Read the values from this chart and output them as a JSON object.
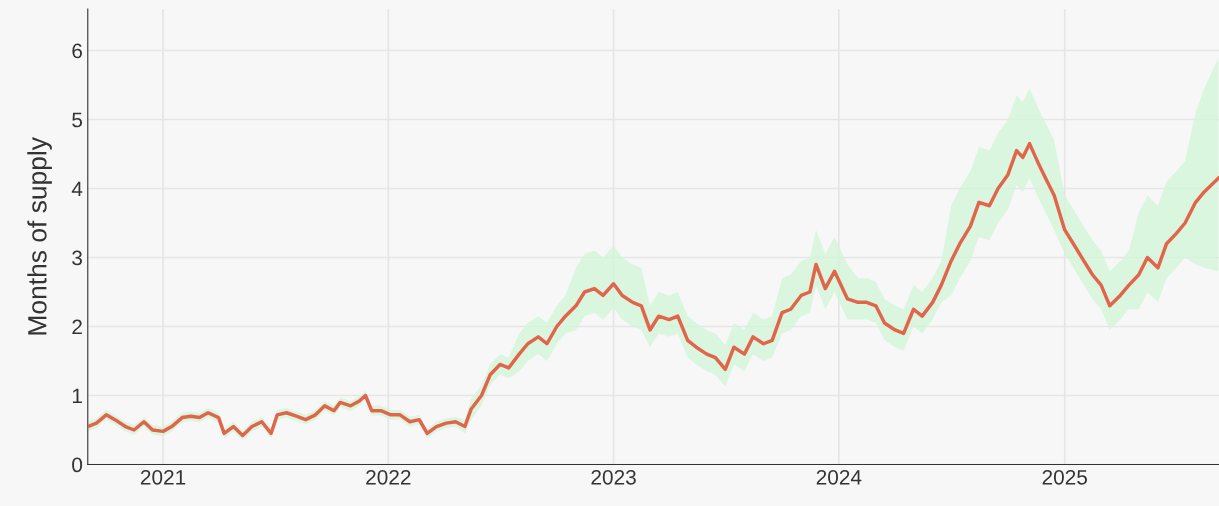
{
  "chart_data": {
    "type": "line",
    "ylabel": "Months of supply",
    "xlim": [
      "2020-09-01",
      "2025-09-08"
    ],
    "xticks": [
      {
        "value": "2021-01-01",
        "label": "2021"
      },
      {
        "value": "2022-01-01",
        "label": "2022"
      },
      {
        "value": "2023-01-01",
        "label": "2023"
      },
      {
        "value": "2024-01-01",
        "label": "2024"
      },
      {
        "value": "2025-01-01",
        "label": "2025"
      }
    ],
    "ylim": [
      0,
      6.6
    ],
    "yticks": [
      0,
      1,
      2,
      3,
      4,
      5,
      6
    ],
    "grid": true,
    "x": [
      "2020-09-01",
      "2020-09-15",
      "2020-10-01",
      "2020-10-15",
      "2020-11-01",
      "2020-11-15",
      "2020-12-01",
      "2020-12-15",
      "2021-01-01",
      "2021-01-15",
      "2021-02-01",
      "2021-02-15",
      "2021-03-01",
      "2021-03-15",
      "2021-04-01",
      "2021-04-10",
      "2021-04-25",
      "2021-05-10",
      "2021-05-25",
      "2021-06-10",
      "2021-06-25",
      "2021-07-05",
      "2021-07-20",
      "2021-08-05",
      "2021-08-20",
      "2021-09-05",
      "2021-09-20",
      "2021-10-05",
      "2021-10-15",
      "2021-11-01",
      "2021-11-15",
      "2021-11-25",
      "2021-12-05",
      "2021-12-20",
      "2022-01-05",
      "2022-01-20",
      "2022-02-05",
      "2022-02-20",
      "2022-03-05",
      "2022-03-20",
      "2022-04-05",
      "2022-04-20",
      "2022-05-05",
      "2022-05-15",
      "2022-06-01",
      "2022-06-15",
      "2022-07-01",
      "2022-07-15",
      "2022-08-01",
      "2022-08-15",
      "2022-09-01",
      "2022-09-15",
      "2022-10-01",
      "2022-10-15",
      "2022-11-01",
      "2022-11-15",
      "2022-12-01",
      "2022-12-15",
      "2023-01-01",
      "2023-01-15",
      "2023-02-01",
      "2023-02-15",
      "2023-03-01",
      "2023-03-15",
      "2023-04-01",
      "2023-04-15",
      "2023-05-01",
      "2023-05-15",
      "2023-06-01",
      "2023-06-15",
      "2023-07-01",
      "2023-07-15",
      "2023-08-01",
      "2023-08-15",
      "2023-09-01",
      "2023-09-15",
      "2023-10-01",
      "2023-10-15",
      "2023-11-01",
      "2023-11-15",
      "2023-11-25",
      "2023-12-10",
      "2023-12-25",
      "2024-01-15",
      "2024-02-01",
      "2024-02-15",
      "2024-03-01",
      "2024-03-15",
      "2024-04-01",
      "2024-04-15",
      "2024-05-01",
      "2024-05-15",
      "2024-06-01",
      "2024-06-15",
      "2024-07-01",
      "2024-07-15",
      "2024-08-01",
      "2024-08-15",
      "2024-09-01",
      "2024-09-15",
      "2024-10-01",
      "2024-10-15",
      "2024-10-25",
      "2024-11-05",
      "2024-11-20",
      "2024-12-01",
      "2024-12-15",
      "2025-01-01",
      "2025-01-15",
      "2025-02-01",
      "2025-02-15",
      "2025-03-01",
      "2025-03-15",
      "2025-04-01",
      "2025-04-15",
      "2025-05-01",
      "2025-05-15",
      "2025-06-01",
      "2025-06-15",
      "2025-07-01",
      "2025-07-15",
      "2025-08-01",
      "2025-08-15",
      "2025-09-07"
    ],
    "series": [
      {
        "color": "#e0654b",
        "values": [
          0.55,
          0.6,
          0.72,
          0.65,
          0.55,
          0.5,
          0.62,
          0.5,
          0.48,
          0.55,
          0.68,
          0.7,
          0.68,
          0.75,
          0.68,
          0.45,
          0.55,
          0.42,
          0.55,
          0.62,
          0.45,
          0.72,
          0.75,
          0.7,
          0.65,
          0.72,
          0.85,
          0.78,
          0.9,
          0.85,
          0.92,
          1.0,
          0.78,
          0.78,
          0.72,
          0.72,
          0.62,
          0.65,
          0.45,
          0.55,
          0.6,
          0.62,
          0.55,
          0.8,
          1.0,
          1.3,
          1.45,
          1.4,
          1.6,
          1.75,
          1.85,
          1.75,
          2.0,
          2.15,
          2.3,
          2.5,
          2.55,
          2.45,
          2.62,
          2.45,
          2.35,
          2.3,
          1.95,
          2.15,
          2.1,
          2.15,
          1.8,
          1.7,
          1.6,
          1.55,
          1.38,
          1.7,
          1.6,
          1.85,
          1.75,
          1.8,
          2.2,
          2.25,
          2.45,
          2.5,
          2.9,
          2.55,
          2.8,
          2.4,
          2.35,
          2.35,
          2.3,
          2.05,
          1.95,
          1.9,
          2.25,
          2.15,
          2.35,
          2.6,
          2.95,
          3.2,
          3.45,
          3.8,
          3.75,
          4.0,
          4.2,
          4.55,
          4.45,
          4.65,
          4.35,
          4.15,
          3.9,
          3.4,
          3.2,
          2.95,
          2.75,
          2.6,
          2.3,
          2.45,
          2.6,
          2.75,
          3.0,
          2.85,
          3.2,
          3.35,
          3.5,
          3.8,
          3.95,
          4.15
        ],
        "lower": [
          0.48,
          0.53,
          0.65,
          0.58,
          0.48,
          0.43,
          0.55,
          0.43,
          0.41,
          0.48,
          0.61,
          0.63,
          0.61,
          0.68,
          0.61,
          0.38,
          0.48,
          0.35,
          0.48,
          0.55,
          0.38,
          0.65,
          0.68,
          0.63,
          0.58,
          0.65,
          0.78,
          0.71,
          0.83,
          0.78,
          0.85,
          0.93,
          0.71,
          0.71,
          0.65,
          0.65,
          0.55,
          0.58,
          0.38,
          0.48,
          0.53,
          0.55,
          0.45,
          0.65,
          0.85,
          1.15,
          1.3,
          1.25,
          1.35,
          1.5,
          1.6,
          1.5,
          1.75,
          1.9,
          1.95,
          2.15,
          2.2,
          2.1,
          2.27,
          2.1,
          2.0,
          1.95,
          1.7,
          1.9,
          1.85,
          1.9,
          1.55,
          1.45,
          1.35,
          1.3,
          1.13,
          1.45,
          1.35,
          1.6,
          1.5,
          1.55,
          1.9,
          1.95,
          2.15,
          2.2,
          2.6,
          2.25,
          2.5,
          2.1,
          2.1,
          2.1,
          2.05,
          1.8,
          1.7,
          1.65,
          2.0,
          1.9,
          2.1,
          2.35,
          2.45,
          2.7,
          2.95,
          3.3,
          3.25,
          3.5,
          3.7,
          4.05,
          3.95,
          4.15,
          3.85,
          3.65,
          3.4,
          3.05,
          2.85,
          2.6,
          2.4,
          2.25,
          1.95,
          2.1,
          2.25,
          2.25,
          2.5,
          2.35,
          2.7,
          2.85,
          3.0,
          2.9,
          2.85,
          2.8
        ],
        "upper": [
          0.62,
          0.67,
          0.79,
          0.72,
          0.62,
          0.57,
          0.69,
          0.57,
          0.55,
          0.62,
          0.75,
          0.77,
          0.75,
          0.82,
          0.75,
          0.52,
          0.62,
          0.49,
          0.62,
          0.69,
          0.52,
          0.79,
          0.82,
          0.77,
          0.72,
          0.79,
          0.92,
          0.85,
          0.97,
          0.92,
          0.99,
          1.07,
          0.85,
          0.85,
          0.79,
          0.79,
          0.69,
          0.72,
          0.52,
          0.62,
          0.67,
          0.69,
          0.65,
          0.95,
          1.15,
          1.45,
          1.6,
          1.55,
          1.9,
          2.05,
          2.15,
          2.05,
          2.3,
          2.45,
          2.85,
          3.05,
          3.1,
          3.0,
          3.17,
          3.0,
          2.9,
          2.85,
          2.3,
          2.5,
          2.45,
          2.5,
          2.15,
          2.05,
          1.95,
          1.9,
          1.73,
          2.05,
          1.95,
          2.2,
          2.1,
          2.15,
          2.7,
          2.75,
          2.95,
          3.0,
          3.4,
          3.05,
          3.3,
          2.9,
          2.7,
          2.7,
          2.65,
          2.4,
          2.3,
          2.25,
          2.6,
          2.5,
          2.7,
          2.95,
          3.75,
          4.0,
          4.25,
          4.6,
          4.55,
          4.8,
          5.0,
          5.35,
          5.25,
          5.45,
          5.15,
          4.95,
          4.7,
          3.9,
          3.7,
          3.45,
          3.25,
          3.1,
          2.8,
          2.95,
          3.1,
          3.65,
          3.9,
          3.75,
          4.1,
          4.25,
          4.4,
          5.1,
          5.45,
          5.9
        ]
      }
    ]
  }
}
